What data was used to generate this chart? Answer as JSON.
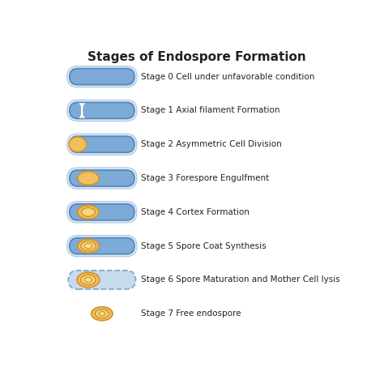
{
  "title": "Stages of Endospore Formation",
  "title_fontsize": 11,
  "background_color": "#ffffff",
  "stages": [
    {
      "label": "Stage 0 Cell under unfavorable condition",
      "type": "plain"
    },
    {
      "label": "Stage 1 Axial filament Formation",
      "type": "filament"
    },
    {
      "label": "Stage 2 Asymmetric Cell Division",
      "type": "division"
    },
    {
      "label": "Stage 3 Forespore Engulfment",
      "type": "engulfment"
    },
    {
      "label": "Stage 4 Cortex Formation",
      "type": "cortex"
    },
    {
      "label": "Stage 5 Spore Coat Synthesis",
      "type": "coat"
    },
    {
      "label": "Stage 6 Spore Maturation and Mother Cell lysis",
      "type": "maturation"
    },
    {
      "label": "Stage 7 Free endospore",
      "type": "free"
    }
  ],
  "cell_fill": "#7daad6",
  "cell_edge": "#5588bb",
  "cell_outer_fill": "#ddeaf8",
  "cell_outer_edge": "#aac5e0",
  "spore_outer_fill": "#f0c060",
  "spore_outer_edge": "#d4952a",
  "spore_mid_fill": "#f5d880",
  "spore_mid_edge": "#d4952a",
  "spore_core_fill": "#f8e090",
  "spore_core_edge": "#d4952a",
  "division_fill": "#f0c060",
  "division_edge": "#d4952a",
  "maturation_fill": "#c8daee",
  "maturation_edge": "#7aadcc",
  "text_color": "#222222",
  "label_fontsize": 7.5
}
